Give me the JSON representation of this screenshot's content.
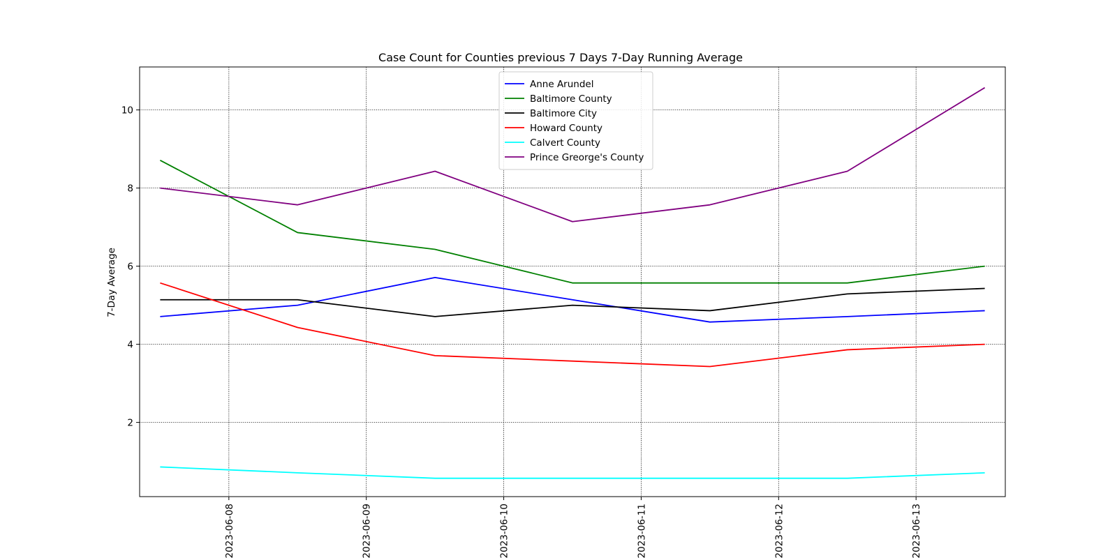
{
  "chart_data": {
    "type": "line",
    "title": "Case Count for Counties previous 7 Days 7-Day Running Average",
    "xlabel": "",
    "ylabel": "7-Day Average",
    "x": [
      "2023-06-07 12:00",
      "2023-06-08 12:00",
      "2023-06-09 12:00",
      "2023-06-10 12:00",
      "2023-06-11 12:00",
      "2023-06-12 12:00",
      "2023-06-13 12:00"
    ],
    "xticks": [
      "2023-06-08",
      "2023-06-09",
      "2023-06-10",
      "2023-06-11",
      "2023-06-12",
      "2023-06-13"
    ],
    "yticks": [
      2,
      4,
      6,
      8,
      10
    ],
    "ylim": [
      0.1,
      11.1
    ],
    "xlim": [
      "2023-06-07 08:25",
      "2023-06-13 15:35"
    ],
    "grid": true,
    "legend_position": "upper center",
    "series": [
      {
        "name": "Anne Arundel",
        "color": "#0000ff",
        "values": [
          4.71,
          5.0,
          5.71,
          5.14,
          4.57,
          4.71,
          4.86
        ]
      },
      {
        "name": "Baltimore County",
        "color": "#008000",
        "values": [
          8.71,
          6.86,
          6.43,
          5.57,
          5.57,
          5.57,
          6.0
        ]
      },
      {
        "name": "Baltimore City",
        "color": "#000000",
        "values": [
          5.14,
          5.14,
          4.71,
          5.0,
          4.86,
          5.29,
          5.43
        ]
      },
      {
        "name": "Howard County",
        "color": "#ff0000",
        "values": [
          5.57,
          4.43,
          3.71,
          3.57,
          3.43,
          3.86,
          4.0
        ]
      },
      {
        "name": "Calvert County",
        "color": "#00ffff",
        "values": [
          0.86,
          0.71,
          0.57,
          0.57,
          0.57,
          0.57,
          0.71
        ]
      },
      {
        "name": "Prince Greorge's County",
        "color": "#800080",
        "values": [
          8.0,
          7.57,
          8.43,
          7.14,
          7.57,
          8.43,
          10.57
        ]
      }
    ]
  }
}
